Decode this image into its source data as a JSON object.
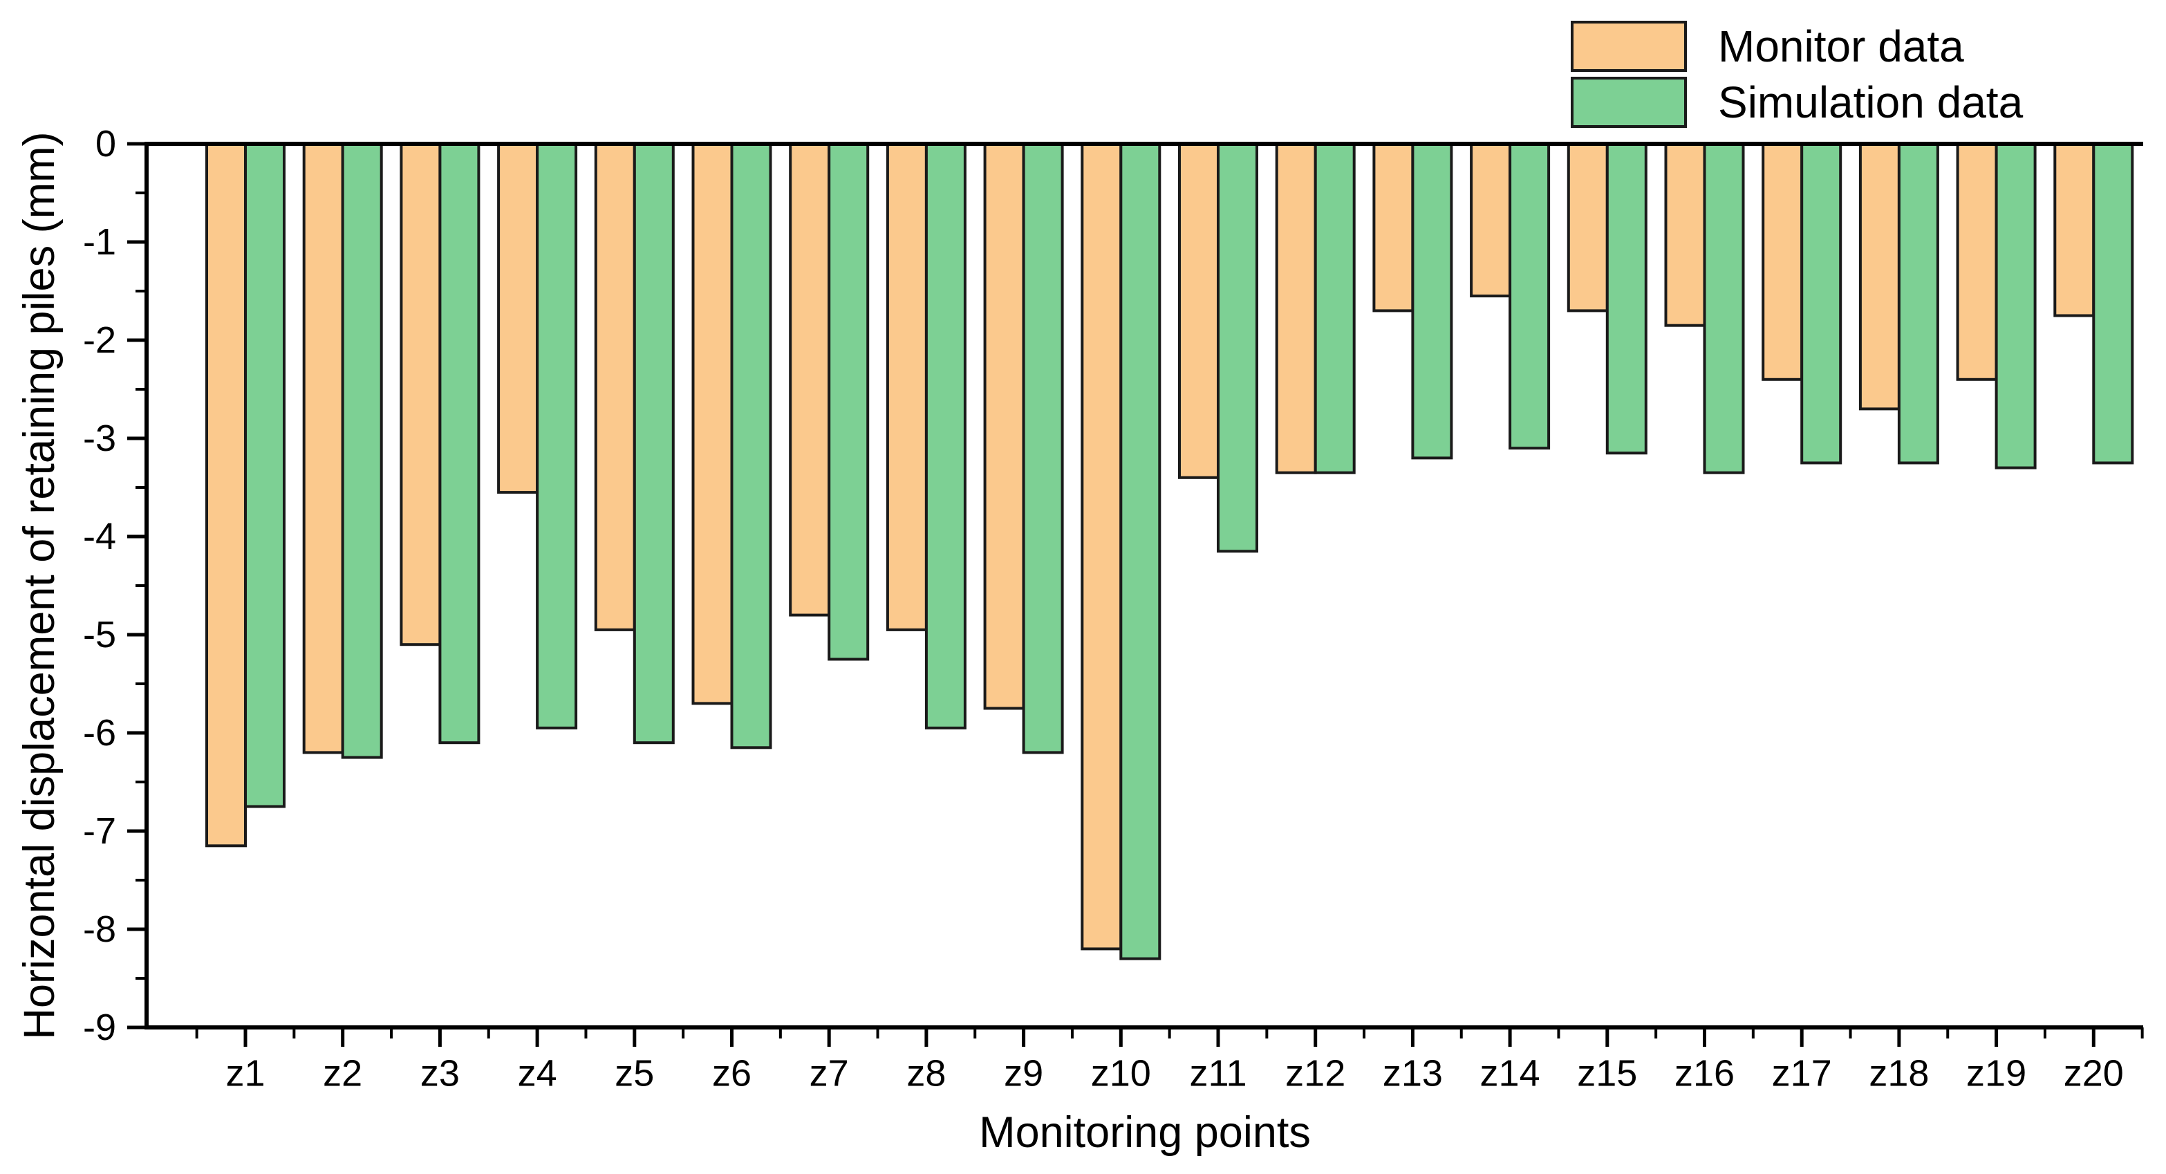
{
  "chart_data": {
    "type": "bar",
    "title": "",
    "xlabel": "Monitoring points",
    "ylabel": "Horizontal displacement of retaining piles (mm)",
    "categories": [
      "z1",
      "z2",
      "z3",
      "z4",
      "z5",
      "z6",
      "z7",
      "z8",
      "z9",
      "z10",
      "z11",
      "z12",
      "z13",
      "z14",
      "z15",
      "z16",
      "z17",
      "z18",
      "z19",
      "z20"
    ],
    "series": [
      {
        "name": "Monitor data",
        "color": "#FBC98D",
        "values": [
          -7.15,
          -6.2,
          -5.1,
          -3.55,
          -4.95,
          -5.7,
          -4.8,
          -4.95,
          -5.75,
          -8.2,
          -3.4,
          -3.35,
          -1.7,
          -1.55,
          -1.7,
          -1.85,
          -2.4,
          -2.7,
          -2.4,
          -1.75
        ]
      },
      {
        "name": "Simulation data",
        "color": "#7DD094",
        "values": [
          -6.75,
          -6.25,
          -6.1,
          -5.95,
          -6.1,
          -6.15,
          -5.25,
          -5.95,
          -6.2,
          -8.3,
          -4.15,
          -3.35,
          -3.2,
          -3.1,
          -3.15,
          -3.35,
          -3.25,
          -3.25,
          -3.3,
          -3.25
        ]
      }
    ],
    "ylim": [
      0,
      -9
    ],
    "ytick_labels": [
      "0",
      "-1",
      "-2",
      "-3",
      "-4",
      "-5",
      "-6",
      "-7",
      "-8",
      "-9"
    ],
    "y_minor_tick_interval": 0.5,
    "grid": false,
    "legend_position": "top-right",
    "axis_color": "#000000",
    "bar_border_color": "#1a1a1a"
  }
}
